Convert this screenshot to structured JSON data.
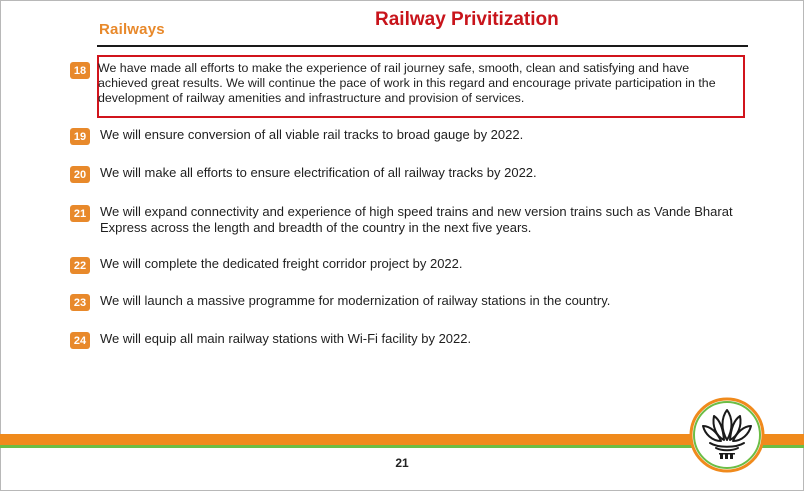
{
  "header": {
    "section_title": "Railways",
    "overlay_title": "Railway Privitization"
  },
  "items": [
    {
      "number": "18",
      "text": "We have made all efforts to make the experience of rail journey safe, smooth, clean and satisfying and have achieved great results. We will continue the pace of work in this regard and encourage private participation in the development of railway amenities and infrastructure and provision of services."
    },
    {
      "number": "19",
      "text": "We will ensure conversion of all viable rail tracks to broad gauge by 2022."
    },
    {
      "number": "20",
      "text": "We will make all efforts to ensure electrification of all railway tracks by 2022."
    },
    {
      "number": "21",
      "text": "We will expand connectivity and experience of high speed trains and new version trains such as Vande Bharat Express across the length and breadth of the country in the next five years."
    },
    {
      "number": "22",
      "text": "We will complete the dedicated freight corridor project by 2022."
    },
    {
      "number": "23",
      "text": "We will launch a massive programme for modernization of railway stations in the country."
    },
    {
      "number": "24",
      "text": "We will equip all main railway stations with Wi-Fi facility by 2022."
    }
  ],
  "footer": {
    "page_number": "21",
    "logo_icon": "lotus-emblem-icon"
  },
  "colors": {
    "accent_orange": "#e8892b",
    "highlight_red": "#d1141c",
    "band_green": "#6cbd45"
  }
}
